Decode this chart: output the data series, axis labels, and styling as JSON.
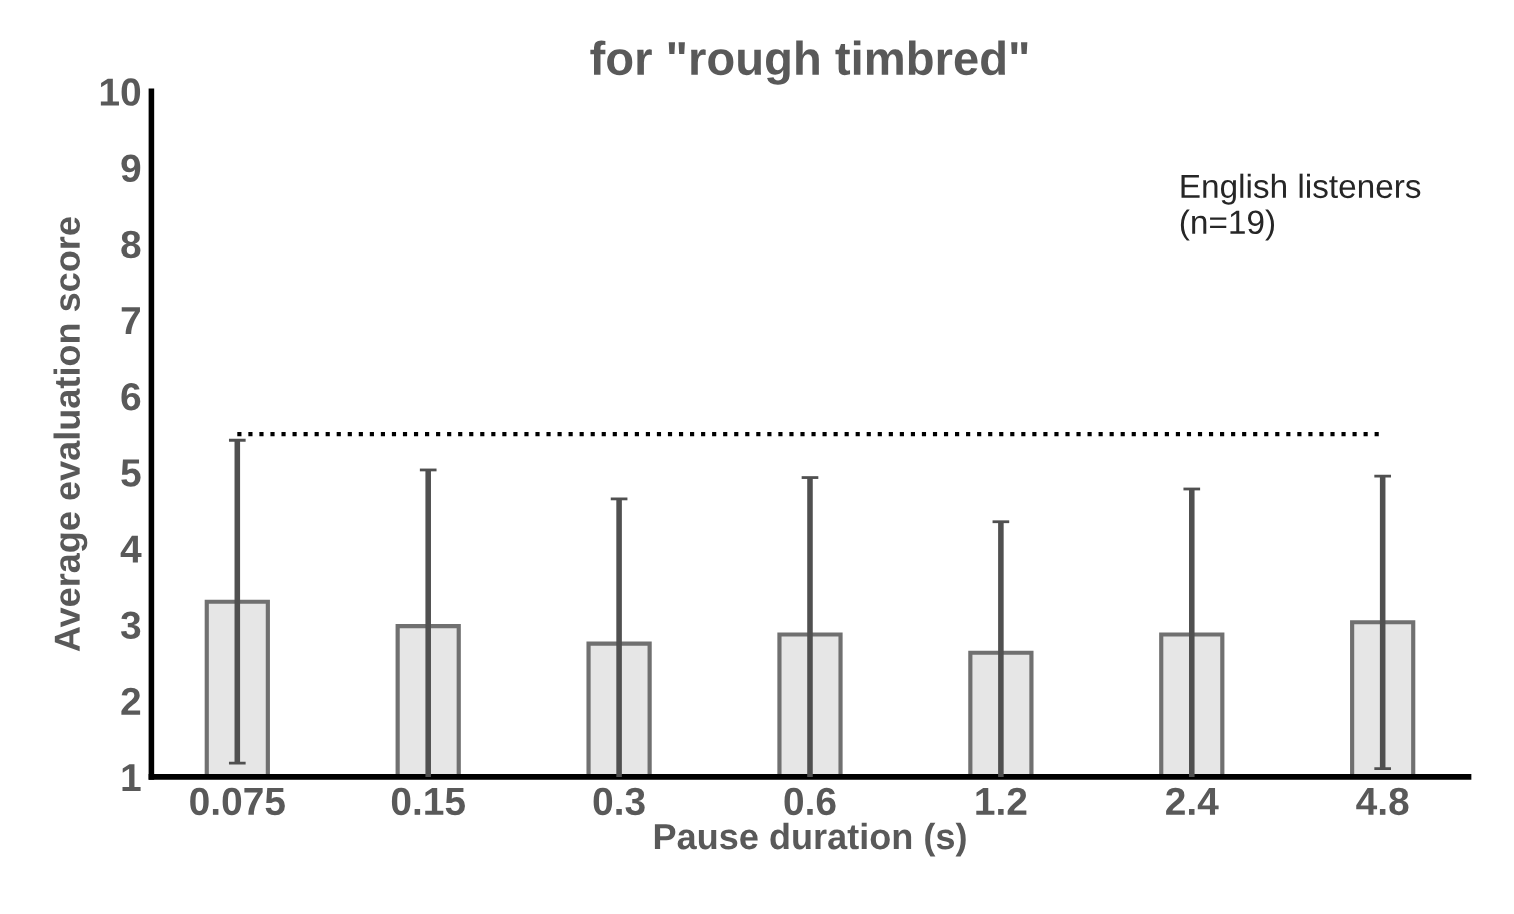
{
  "chart_data": {
    "type": "bar",
    "title": "for \"rough timbred\"",
    "xlabel": "Pause duration (s)",
    "ylabel": "Average evaluation score",
    "categories": [
      "0.075",
      "0.15",
      "0.3",
      "0.6",
      "1.2",
      "2.4",
      "4.8"
    ],
    "series": [
      {
        "color": "#e6e6e6",
        "values": [
          3.3,
          2.98,
          2.75,
          2.87,
          2.63,
          2.87,
          3.03
        ],
        "errors": [
          2.12,
          2.05,
          1.9,
          2.06,
          1.72,
          1.91,
          1.92
        ]
      }
    ],
    "ylim": [
      1,
      10
    ],
    "yticks": [
      1,
      2,
      3,
      4,
      5,
      6,
      7,
      8,
      9,
      10
    ],
    "ref_lines": [
      {
        "axis": "y",
        "value": 5.5,
        "label": null,
        "color": "#000000",
        "line_style": "dotted"
      }
    ],
    "annotations": [
      "English listeners\n(n=19)"
    ],
    "grid": false,
    "legend": false
  }
}
